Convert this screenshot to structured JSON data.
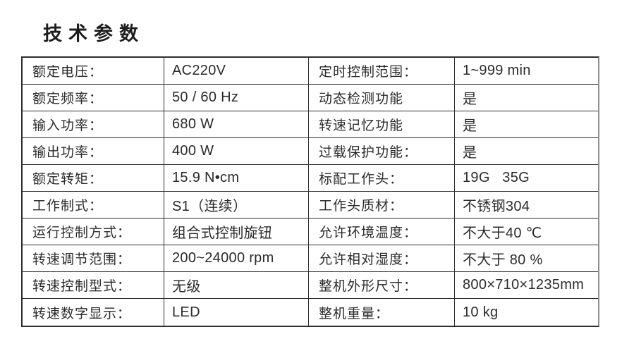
{
  "page": {
    "title": "技术参数"
  },
  "table": {
    "rows": [
      {
        "left": {
          "label": "额定电压：",
          "value": "AC220V"
        },
        "right": {
          "label": "定时控制范围：",
          "value": "1~999 min"
        }
      },
      {
        "left": {
          "label": "额定频率：",
          "value": "50 / 60 Hz"
        },
        "right": {
          "label": "动态检测功能",
          "value": "是"
        }
      },
      {
        "left": {
          "label": "输入功率：",
          "value": "680 W"
        },
        "right": {
          "label": "转速记忆功能",
          "value": "是"
        }
      },
      {
        "left": {
          "label": "输出功率：",
          "value": "400 W"
        },
        "right": {
          "label": "过载保护功能：",
          "value": "是"
        }
      },
      {
        "left": {
          "label": "额定转矩：",
          "value": "15.9 N•cm"
        },
        "right": {
          "label": "标配工作头：",
          "value": "19G   35G"
        }
      },
      {
        "left": {
          "label": "工作制式：",
          "value": "S1（连续）"
        },
        "right": {
          "label": "工作头质材：",
          "value": "不锈钢304"
        }
      },
      {
        "left": {
          "label": "运行控制方式：",
          "value": "组合式控制旋钮"
        },
        "right": {
          "label": "允许环境温度：",
          "value": "不大于40 ℃"
        }
      },
      {
        "left": {
          "label": "转速调节范围：",
          "value": "200~24000 rpm"
        },
        "right": {
          "label": "允许相对湿度：",
          "value": "不大于 80 %"
        }
      },
      {
        "left": {
          "label": "转速控制型式：",
          "value": "无级"
        },
        "right": {
          "label": "整机外形尺寸：",
          "value": "800×710×1235mm"
        }
      },
      {
        "left": {
          "label": "转速数字显示：",
          "value": "LED"
        },
        "right": {
          "label": "整机重量：",
          "value": "10 kg"
        }
      }
    ]
  }
}
